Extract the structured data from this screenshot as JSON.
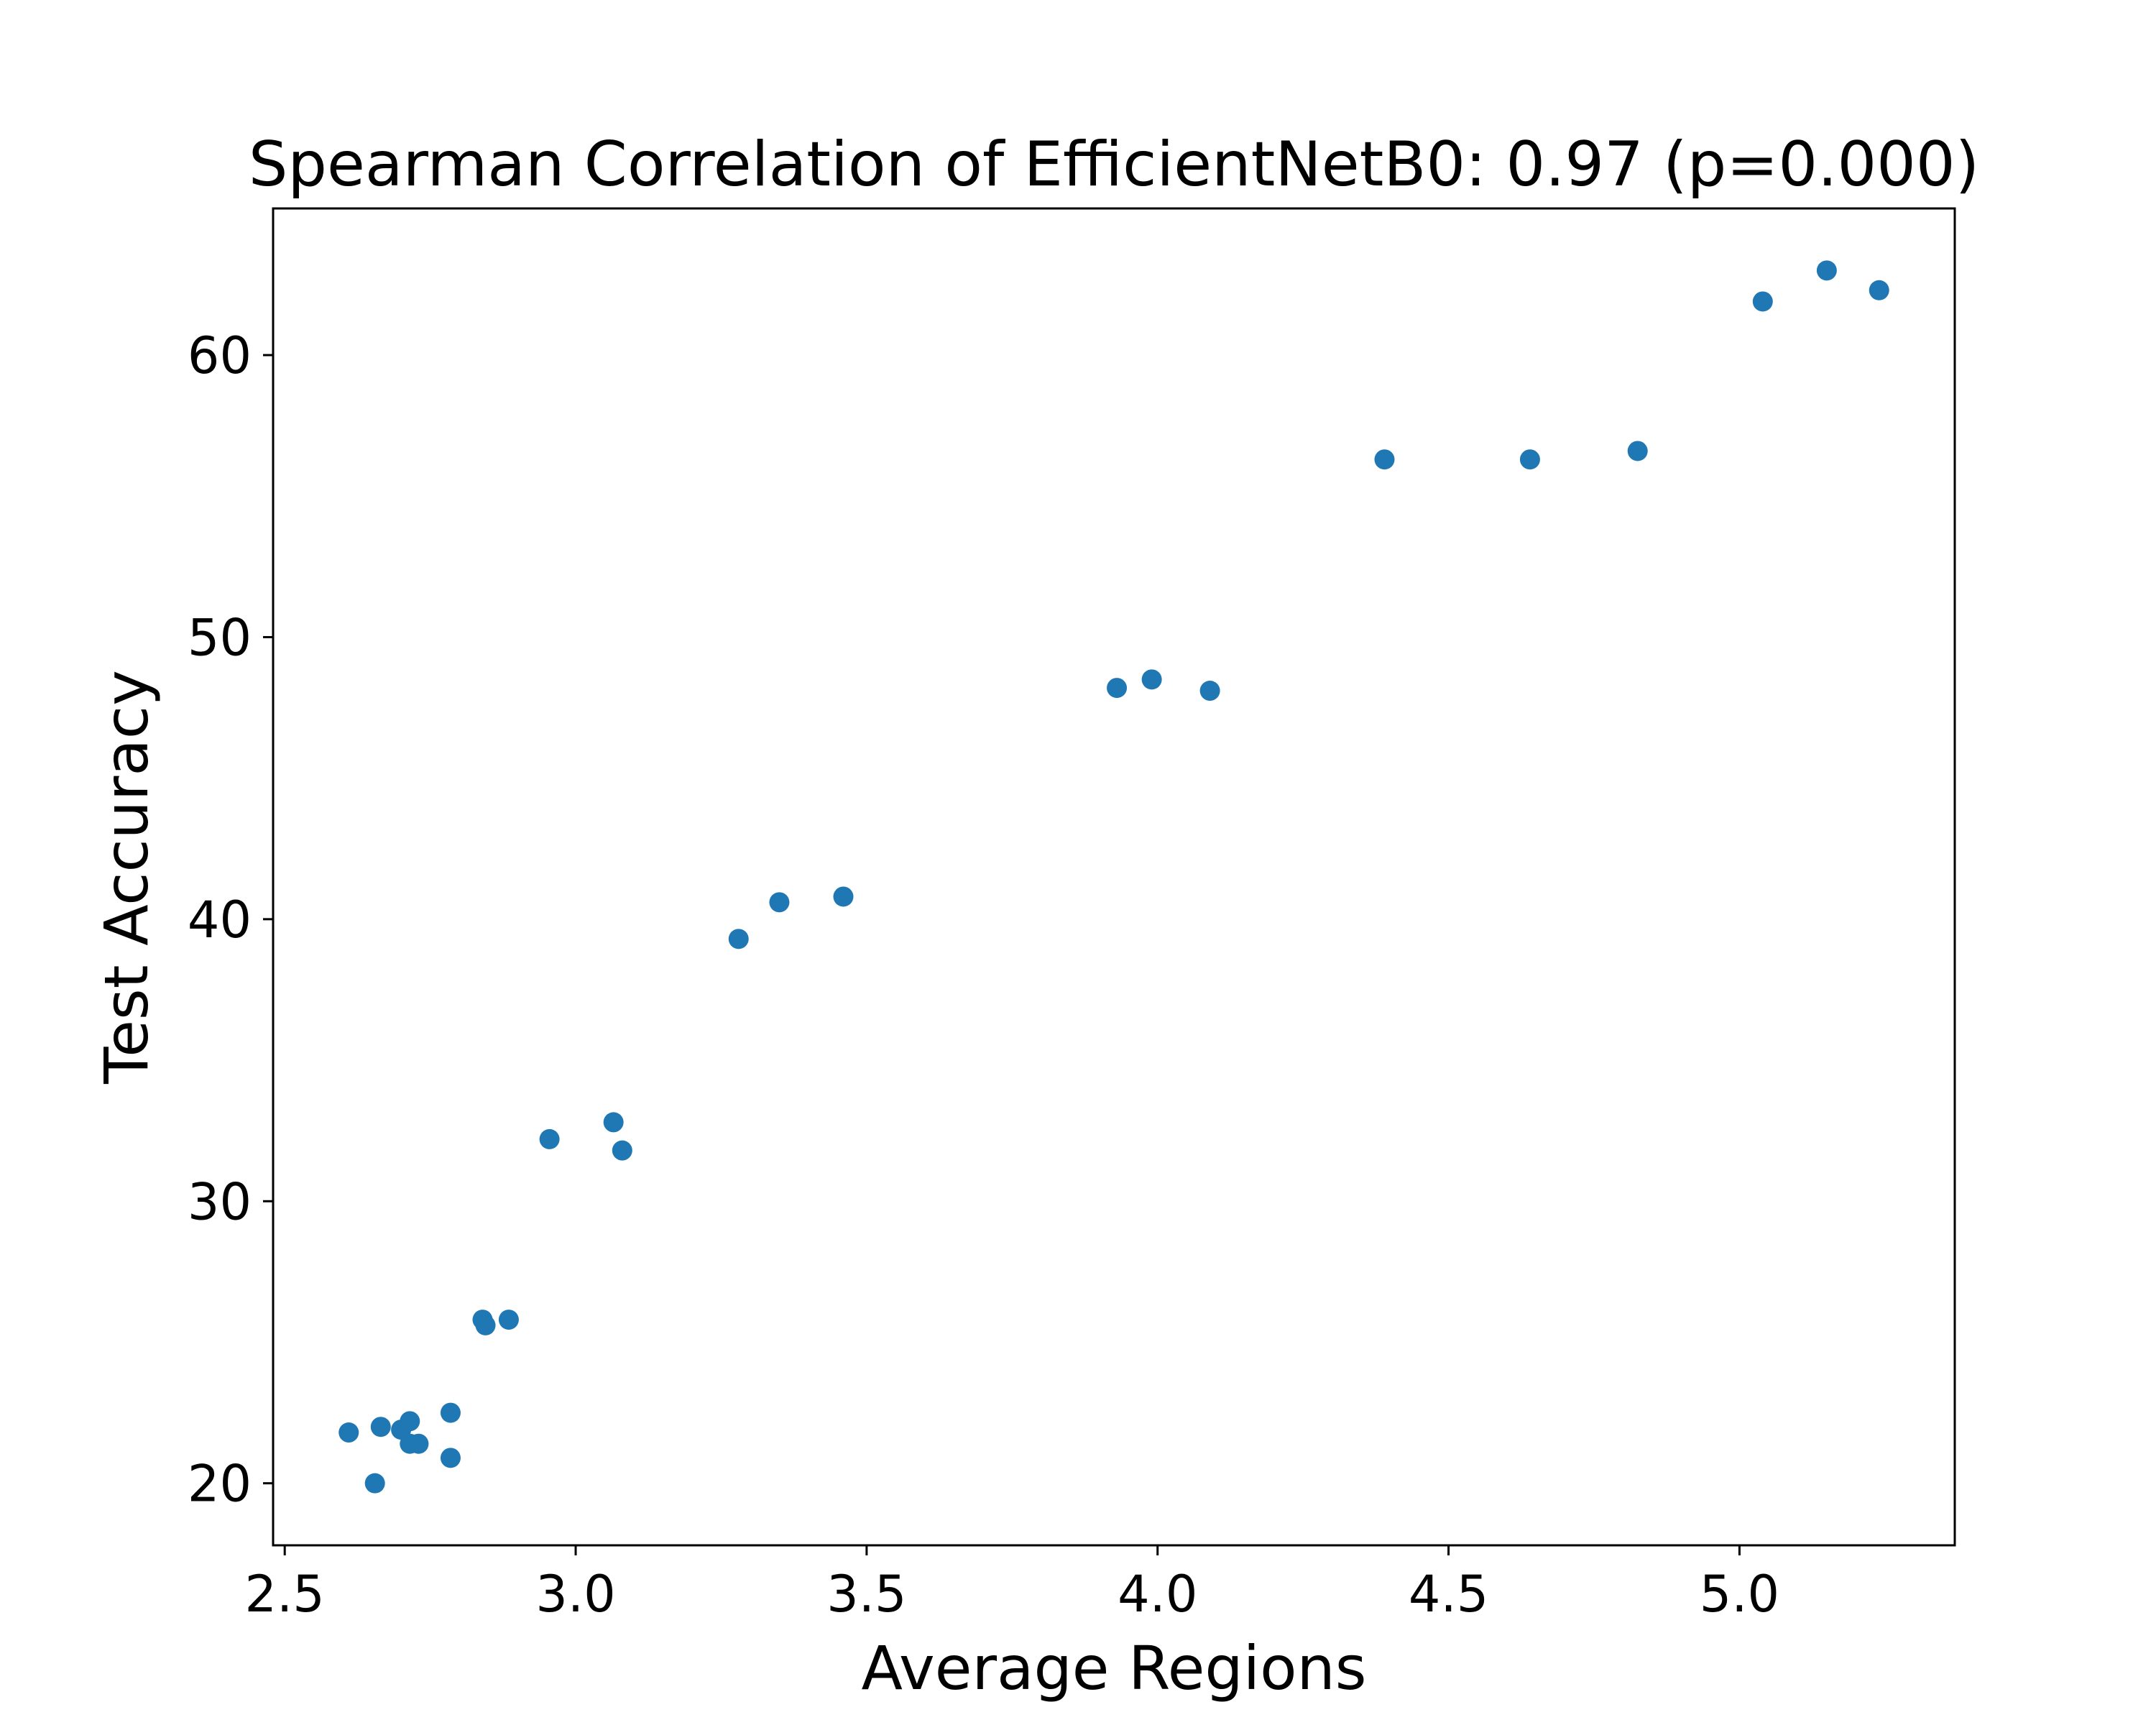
{
  "chart_data": {
    "type": "scatter",
    "title": "Spearman Correlation of EfficientNetB0: 0.97 (p=0.000)",
    "xlabel": "Average Regions",
    "ylabel": "Test Accuracy",
    "xlim": [
      2.48,
      5.37
    ],
    "ylim": [
      17.8,
      65.2
    ],
    "xticks": [
      2.5,
      3.0,
      3.5,
      4.0,
      4.5,
      5.0
    ],
    "xtick_labels": [
      "2.5",
      "3.0",
      "3.5",
      "4.0",
      "4.5",
      "5.0"
    ],
    "yticks": [
      20,
      30,
      40,
      50,
      60
    ],
    "ytick_labels": [
      "20",
      "30",
      "40",
      "50",
      "60"
    ],
    "grid": false,
    "color": "#1f77b4",
    "points": [
      {
        "x": 2.61,
        "y": 21.8
      },
      {
        "x": 2.655,
        "y": 20.0
      },
      {
        "x": 2.665,
        "y": 22.0
      },
      {
        "x": 2.7,
        "y": 21.9
      },
      {
        "x": 2.715,
        "y": 22.2
      },
      {
        "x": 2.715,
        "y": 21.4
      },
      {
        "x": 2.73,
        "y": 21.4
      },
      {
        "x": 2.785,
        "y": 22.5
      },
      {
        "x": 2.785,
        "y": 20.9
      },
      {
        "x": 2.84,
        "y": 25.8
      },
      {
        "x": 2.845,
        "y": 25.6
      },
      {
        "x": 2.885,
        "y": 25.8
      },
      {
        "x": 2.955,
        "y": 32.2
      },
      {
        "x": 3.065,
        "y": 32.8
      },
      {
        "x": 3.08,
        "y": 31.8
      },
      {
        "x": 3.28,
        "y": 39.3
      },
      {
        "x": 3.35,
        "y": 40.6
      },
      {
        "x": 3.46,
        "y": 40.8
      },
      {
        "x": 3.93,
        "y": 48.2
      },
      {
        "x": 3.99,
        "y": 48.5
      },
      {
        "x": 4.09,
        "y": 48.1
      },
      {
        "x": 4.39,
        "y": 56.3
      },
      {
        "x": 4.64,
        "y": 56.3
      },
      {
        "x": 4.825,
        "y": 56.6
      },
      {
        "x": 5.04,
        "y": 61.9
      },
      {
        "x": 5.15,
        "y": 63.0
      },
      {
        "x": 5.24,
        "y": 62.3
      }
    ]
  }
}
